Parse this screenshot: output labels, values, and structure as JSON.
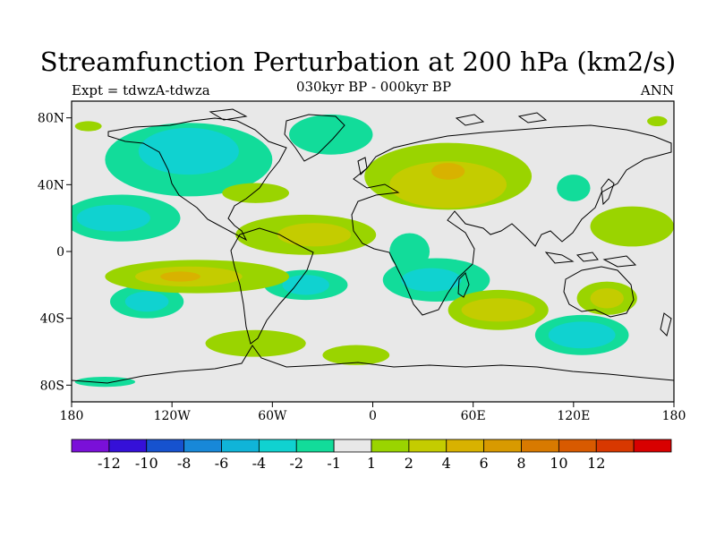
{
  "title": "Streamfunction Perturbation at 200 hPa (km2/s)",
  "subtitle": "030kyr BP - 000kyr BP",
  "expt_label": "Expt = tdwzA-tdwza",
  "season_label": "ANN",
  "axes": {
    "lon_ticks": [
      {
        "value": -180,
        "label": "180"
      },
      {
        "value": -120,
        "label": "120W"
      },
      {
        "value": -60,
        "label": "60W"
      },
      {
        "value": 0,
        "label": "0"
      },
      {
        "value": 60,
        "label": "60E"
      },
      {
        "value": 120,
        "label": "120E"
      },
      {
        "value": 180,
        "label": "180"
      }
    ],
    "lat_ticks": [
      {
        "value": 80,
        "label": "80N"
      },
      {
        "value": 40,
        "label": "40N"
      },
      {
        "value": 0,
        "label": "0"
      },
      {
        "value": -40,
        "label": "40S"
      },
      {
        "value": -80,
        "label": "80S"
      }
    ],
    "lon_range": [
      -180,
      180
    ],
    "lat_range": [
      -90,
      90
    ]
  },
  "colorbar": {
    "colors": [
      "#7a10d8",
      "#3510d8",
      "#1652cf",
      "#1888d8",
      "#10b4d8",
      "#10d2d0",
      "#12dc9a",
      "#e8e8e8",
      "#9ad400",
      "#c4cc00",
      "#d8b200",
      "#d89a00",
      "#d87a00",
      "#d85a00",
      "#d83800",
      "#d80000"
    ],
    "labels": [
      "-12",
      "-10",
      "-8",
      "-6",
      "-4",
      "-2",
      "-1",
      "1",
      "2",
      "4",
      "6",
      "8",
      "10",
      "12"
    ],
    "background_color": "#e8e8e8"
  },
  "map_data": {
    "projection": "cylindrical equidistant",
    "units": "km2/s",
    "field_regions": [
      {
        "level": "-1",
        "color": "#12dc9a",
        "lon": -110,
        "lat": 55,
        "rlon": 50,
        "rlat": 22
      },
      {
        "level": "-2",
        "color": "#10d2d0",
        "lon": -110,
        "lat": 60,
        "rlon": 30,
        "rlat": 14
      },
      {
        "level": "-1",
        "color": "#12dc9a",
        "lon": -25,
        "lat": 70,
        "rlon": 25,
        "rlat": 12
      },
      {
        "level": "-1",
        "color": "#12dc9a",
        "lon": -150,
        "lat": 20,
        "rlon": 35,
        "rlat": 14
      },
      {
        "level": "-2",
        "color": "#10d2d0",
        "lon": -155,
        "lat": 20,
        "rlon": 22,
        "rlat": 8
      },
      {
        "level": "-1",
        "color": "#12dc9a",
        "lon": -40,
        "lat": -20,
        "rlon": 25,
        "rlat": 9
      },
      {
        "level": "-2",
        "color": "#10d2d0",
        "lon": -40,
        "lat": -20,
        "rlon": 14,
        "rlat": 6
      },
      {
        "level": "-1",
        "color": "#12dc9a",
        "lon": 38,
        "lat": -17,
        "rlon": 32,
        "rlat": 13
      },
      {
        "level": "-2",
        "color": "#10d2d0",
        "lon": 35,
        "lat": -17,
        "rlon": 18,
        "rlat": 7
      },
      {
        "level": "-1",
        "color": "#12dc9a",
        "lon": -135,
        "lat": -30,
        "rlon": 22,
        "rlat": 10
      },
      {
        "level": "-2",
        "color": "#10d2d0",
        "lon": -135,
        "lat": -30,
        "rlon": 13,
        "rlat": 6
      },
      {
        "level": "-1",
        "color": "#12dc9a",
        "lon": 22,
        "lat": 0,
        "rlon": 12,
        "rlat": 11
      },
      {
        "level": "-1",
        "color": "#12dc9a",
        "lon": 125,
        "lat": -50,
        "rlon": 28,
        "rlat": 12
      },
      {
        "level": "-2",
        "color": "#10d2d0",
        "lon": 125,
        "lat": -50,
        "rlon": 20,
        "rlat": 8
      },
      {
        "level": "-1",
        "color": "#12dc9a",
        "lon": 120,
        "lat": 38,
        "rlon": 10,
        "rlat": 8
      },
      {
        "level": "-1",
        "color": "#12dc9a",
        "lon": -160,
        "lat": -78,
        "rlon": 18,
        "rlat": 3
      },
      {
        "level": "1",
        "color": "#9ad400",
        "lon": -40,
        "lat": 10,
        "rlon": 42,
        "rlat": 12
      },
      {
        "level": "2",
        "color": "#c4cc00",
        "lon": -35,
        "lat": 10,
        "rlon": 22,
        "rlat": 7
      },
      {
        "level": "1",
        "color": "#9ad400",
        "lon": -105,
        "lat": -15,
        "rlon": 55,
        "rlat": 10
      },
      {
        "level": "2",
        "color": "#c4cc00",
        "lon": -110,
        "lat": -15,
        "rlon": 32,
        "rlat": 6
      },
      {
        "level": "4",
        "color": "#d8b200",
        "lon": -115,
        "lat": -15,
        "rlon": 12,
        "rlat": 3
      },
      {
        "level": "1",
        "color": "#9ad400",
        "lon": 45,
        "lat": 45,
        "rlon": 50,
        "rlat": 20
      },
      {
        "level": "2",
        "color": "#c4cc00",
        "lon": 45,
        "lat": 40,
        "rlon": 35,
        "rlat": 14
      },
      {
        "level": "4",
        "color": "#d8b200",
        "lon": 45,
        "lat": 48,
        "rlon": 10,
        "rlat": 5
      },
      {
        "level": "1",
        "color": "#9ad400",
        "lon": -70,
        "lat": 35,
        "rlon": 20,
        "rlat": 6
      },
      {
        "level": "1",
        "color": "#9ad400",
        "lon": 75,
        "lat": -35,
        "rlon": 30,
        "rlat": 12
      },
      {
        "level": "2",
        "color": "#c4cc00",
        "lon": 75,
        "lat": -35,
        "rlon": 22,
        "rlat": 7
      },
      {
        "level": "1",
        "color": "#9ad400",
        "lon": 155,
        "lat": 15,
        "rlon": 25,
        "rlat": 12
      },
      {
        "level": "1",
        "color": "#9ad400",
        "lon": 140,
        "lat": -28,
        "rlon": 18,
        "rlat": 10
      },
      {
        "level": "2",
        "color": "#c4cc00",
        "lon": 140,
        "lat": -28,
        "rlon": 10,
        "rlat": 6
      },
      {
        "level": "1",
        "color": "#9ad400",
        "lon": -70,
        "lat": -55,
        "rlon": 30,
        "rlat": 8
      },
      {
        "level": "1",
        "color": "#9ad400",
        "lon": -10,
        "lat": -62,
        "rlon": 20,
        "rlat": 6
      },
      {
        "level": "1",
        "color": "#9ad400",
        "lon": -170,
        "lat": 75,
        "rlon": 8,
        "rlat": 3
      },
      {
        "level": "1",
        "color": "#9ad400",
        "lon": 170,
        "lat": 78,
        "rlon": 6,
        "rlat": 3
      }
    ]
  }
}
